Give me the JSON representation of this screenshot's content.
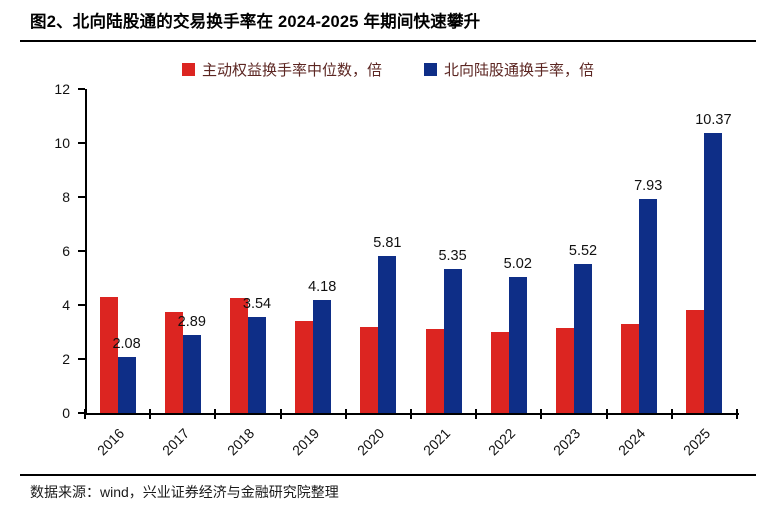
{
  "header": {
    "title": "图2、北向陆股通的交易换手率在 2024-2025 年期间快速攀升"
  },
  "legend": {
    "items": [
      {
        "label": "主动权益换手率中位数，倍",
        "color": "#dc2521"
      },
      {
        "label": "北向陆股通换手率，倍",
        "color": "#0e2e87"
      }
    ]
  },
  "chart_data": {
    "type": "bar",
    "title": "",
    "categories": [
      "2016",
      "2017",
      "2018",
      "2019",
      "2020",
      "2021",
      "2022",
      "2023",
      "2024",
      "2025"
    ],
    "series": [
      {
        "name": "主动权益换手率中位数，倍",
        "color": "#dc2521",
        "values": [
          4.3,
          3.75,
          4.25,
          3.4,
          3.2,
          3.1,
          3.0,
          3.15,
          3.3,
          3.8
        ],
        "labels_visible": false
      },
      {
        "name": "北向陆股通换手率，倍",
        "color": "#0e2e87",
        "values": [
          2.08,
          2.89,
          3.54,
          4.18,
          5.81,
          5.35,
          5.02,
          5.52,
          7.93,
          10.37
        ],
        "labels_visible": true,
        "data_labels": [
          "2.08",
          "2.89",
          "3.54",
          "4.18",
          "5.81",
          "5.35",
          "5.02",
          "5.52",
          "7.93",
          "10.37"
        ]
      }
    ],
    "ylabel": "",
    "xlabel": "",
    "ylim": [
      0,
      12
    ],
    "ytick_step": 2,
    "grid": false,
    "legend_position": "top",
    "x_tick_rotation": 45
  },
  "footer": {
    "source": "数据来源：wind，兴业证券经济与金融研究院整理"
  },
  "colors": {
    "bar_red": "#dc2521",
    "bar_blue": "#0e2e87",
    "legend_text": "#5c2622",
    "axis": "#000000",
    "label_text": "#111111"
  }
}
